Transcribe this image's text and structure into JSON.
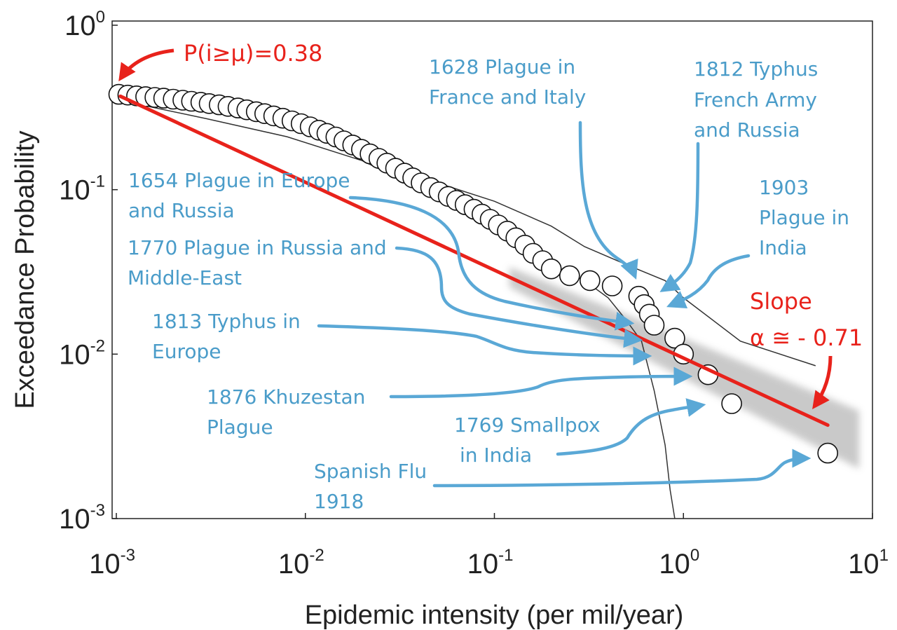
{
  "chart_data": {
    "type": "scatter",
    "xscale": "log",
    "yscale": "log",
    "xlim": [
      0.001,
      10
    ],
    "ylim": [
      0.001,
      1
    ],
    "xlabel": "Epidemic intensity (per mil/year)",
    "ylabel": "Exceedance Probability",
    "x_ticks": [
      {
        "base": "10",
        "exp": "-3",
        "value": 0.001
      },
      {
        "base": "10",
        "exp": "-2",
        "value": 0.01
      },
      {
        "base": "10",
        "exp": "-1",
        "value": 0.1
      },
      {
        "base": "10",
        "exp": "0",
        "value": 1
      },
      {
        "base": "10",
        "exp": "1",
        "value": 10
      }
    ],
    "y_ticks": [
      {
        "base": "10",
        "exp": "0",
        "value": 1
      },
      {
        "base": "10",
        "exp": "-1",
        "value": 0.1
      },
      {
        "base": "10",
        "exp": "-2",
        "value": 0.01
      },
      {
        "base": "10",
        "exp": "-3",
        "value": 0.001
      }
    ],
    "fit": {
      "color": "#e8221b",
      "slope_label_line1": "Slope",
      "slope_label_line2": "α ≅ - 0.71",
      "start": {
        "x": 0.00105,
        "y": 0.37
      },
      "end": {
        "x": 5.8,
        "y": 0.0037
      }
    },
    "threshold_label": "P(i≥μ)=0.38",
    "colors": {
      "annotation": "#4a9cc9",
      "fit": "#e8221b",
      "band": "#b8b8b8",
      "marker_edge": "#111111"
    },
    "lower_bound": [
      [
        0.0011,
        0.345
      ],
      [
        0.003,
        0.27
      ],
      [
        0.008,
        0.21
      ],
      [
        0.02,
        0.15
      ],
      [
        0.05,
        0.09
      ],
      [
        0.1,
        0.06
      ],
      [
        0.15,
        0.045
      ],
      [
        0.2,
        0.035
      ],
      [
        0.3,
        0.028
      ],
      [
        0.4,
        0.022
      ],
      [
        0.5,
        0.016
      ],
      [
        0.6,
        0.012
      ],
      [
        0.7,
        0.006
      ],
      [
        0.8,
        0.0028
      ],
      [
        0.85,
        0.0015
      ],
      [
        0.9,
        0.001
      ]
    ],
    "upper_bound": [
      [
        0.0011,
        0.38
      ],
      [
        0.003,
        0.31
      ],
      [
        0.008,
        0.24
      ],
      [
        0.02,
        0.17
      ],
      [
        0.05,
        0.11
      ],
      [
        0.1,
        0.085
      ],
      [
        0.2,
        0.06
      ],
      [
        0.3,
        0.045
      ],
      [
        0.5,
        0.035
      ],
      [
        0.8,
        0.028
      ],
      [
        1.0,
        0.022
      ],
      [
        2.0,
        0.012
      ],
      [
        5.0,
        0.0085
      ]
    ],
    "points": [
      {
        "x": 0.00103,
        "y": 0.38
      },
      {
        "x": 0.00115,
        "y": 0.376
      },
      {
        "x": 0.00128,
        "y": 0.372
      },
      {
        "x": 0.00143,
        "y": 0.368
      },
      {
        "x": 0.0016,
        "y": 0.364
      },
      {
        "x": 0.00178,
        "y": 0.36
      },
      {
        "x": 0.002,
        "y": 0.355
      },
      {
        "x": 0.00225,
        "y": 0.35
      },
      {
        "x": 0.0025,
        "y": 0.345
      },
      {
        "x": 0.0028,
        "y": 0.34
      },
      {
        "x": 0.0031,
        "y": 0.334
      },
      {
        "x": 0.0035,
        "y": 0.328
      },
      {
        "x": 0.0039,
        "y": 0.321
      },
      {
        "x": 0.0044,
        "y": 0.314
      },
      {
        "x": 0.0049,
        "y": 0.306
      },
      {
        "x": 0.0055,
        "y": 0.298
      },
      {
        "x": 0.0061,
        "y": 0.29
      },
      {
        "x": 0.0068,
        "y": 0.281
      },
      {
        "x": 0.0076,
        "y": 0.272
      },
      {
        "x": 0.0085,
        "y": 0.262
      },
      {
        "x": 0.0095,
        "y": 0.252
      },
      {
        "x": 0.0106,
        "y": 0.241
      },
      {
        "x": 0.0118,
        "y": 0.23
      },
      {
        "x": 0.013,
        "y": 0.22
      },
      {
        "x": 0.0145,
        "y": 0.209
      },
      {
        "x": 0.016,
        "y": 0.198
      },
      {
        "x": 0.0178,
        "y": 0.187
      },
      {
        "x": 0.0198,
        "y": 0.176
      },
      {
        "x": 0.022,
        "y": 0.165
      },
      {
        "x": 0.0245,
        "y": 0.155
      },
      {
        "x": 0.027,
        "y": 0.145
      },
      {
        "x": 0.03,
        "y": 0.135
      },
      {
        "x": 0.0335,
        "y": 0.126
      },
      {
        "x": 0.037,
        "y": 0.118
      },
      {
        "x": 0.041,
        "y": 0.11
      },
      {
        "x": 0.046,
        "y": 0.103
      },
      {
        "x": 0.051,
        "y": 0.097
      },
      {
        "x": 0.057,
        "y": 0.091
      },
      {
        "x": 0.063,
        "y": 0.086
      },
      {
        "x": 0.07,
        "y": 0.081
      },
      {
        "x": 0.078,
        "y": 0.076
      },
      {
        "x": 0.086,
        "y": 0.071
      },
      {
        "x": 0.095,
        "y": 0.066
      },
      {
        "x": 0.105,
        "y": 0.061
      },
      {
        "x": 0.117,
        "y": 0.056
      },
      {
        "x": 0.13,
        "y": 0.051
      },
      {
        "x": 0.145,
        "y": 0.046
      },
      {
        "x": 0.16,
        "y": 0.041
      },
      {
        "x": 0.18,
        "y": 0.037
      },
      {
        "x": 0.2,
        "y": 0.033
      },
      {
        "x": 0.25,
        "y": 0.03
      },
      {
        "x": 0.32,
        "y": 0.028
      },
      {
        "x": 0.42,
        "y": 0.026
      },
      {
        "x": 0.58,
        "y": 0.0225
      },
      {
        "x": 0.62,
        "y": 0.02
      },
      {
        "x": 0.66,
        "y": 0.0175
      },
      {
        "x": 0.7,
        "y": 0.015
      },
      {
        "x": 0.9,
        "y": 0.0125
      },
      {
        "x": 1.0,
        "y": 0.01
      },
      {
        "x": 1.35,
        "y": 0.0075
      },
      {
        "x": 1.8,
        "y": 0.005
      },
      {
        "x": 5.8,
        "y": 0.0025
      }
    ],
    "annotations": [
      {
        "lines": [
          "1628 Plague in",
          "France and Italy"
        ],
        "target": {
          "x": 0.58,
          "y": 0.0225
        }
      },
      {
        "lines": [
          "1812 Typhus",
          "French Army",
          "and Russia"
        ],
        "target": {
          "x": 0.62,
          "y": 0.02
        }
      },
      {
        "lines": [
          "1903",
          "Plague in",
          "India"
        ],
        "target": {
          "x": 0.66,
          "y": 0.0175
        }
      },
      {
        "lines": [
          "1654 Plague in Europe",
          "and Russia"
        ],
        "target": {
          "x": 0.7,
          "y": 0.015
        }
      },
      {
        "lines": [
          "1770 Plague in Russia and",
          "Middle-East"
        ],
        "target": {
          "x": 0.9,
          "y": 0.0125
        }
      },
      {
        "lines": [
          "1813 Typhus in",
          "Europe"
        ],
        "target": {
          "x": 1.0,
          "y": 0.01
        }
      },
      {
        "lines": [
          "1876 Khuzestan",
          "Plague"
        ],
        "target": {
          "x": 1.35,
          "y": 0.0075
        }
      },
      {
        "lines": [
          "1769 Smallpox",
          "in India"
        ],
        "target": {
          "x": 1.8,
          "y": 0.005
        }
      },
      {
        "lines": [
          "Spanish Flu",
          "1918"
        ],
        "target": {
          "x": 5.8,
          "y": 0.0025
        }
      }
    ]
  }
}
